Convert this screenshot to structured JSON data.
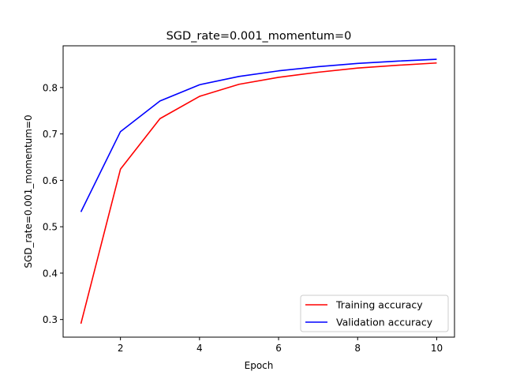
{
  "chart_data": {
    "type": "line",
    "title": "SGD_rate=0.001_momentum=0",
    "xlabel": "Epoch",
    "ylabel": "SGD_rate=0.001_momentum=0",
    "x": [
      1,
      2,
      3,
      4,
      5,
      6,
      7,
      8,
      9,
      10
    ],
    "xlim": [
      0.55,
      10.45
    ],
    "ylim": [
      0.262,
      0.89
    ],
    "xticks": [
      2,
      4,
      6,
      8,
      10
    ],
    "xtick_labels": [
      "2",
      "4",
      "6",
      "8",
      "10"
    ],
    "yticks": [
      0.3,
      0.4,
      0.5,
      0.6,
      0.7,
      0.8
    ],
    "ytick_labels": [
      "0.3",
      "0.4",
      "0.5",
      "0.6",
      "0.7",
      "0.8"
    ],
    "grid": false,
    "legend_position": "lower-right",
    "series": [
      {
        "name": "Training accuracy",
        "color": "#ff0000",
        "values": [
          0.291,
          0.624,
          0.733,
          0.781,
          0.807,
          0.822,
          0.833,
          0.842,
          0.848,
          0.853
        ]
      },
      {
        "name": "Validation accuracy",
        "color": "#0000ff",
        "values": [
          0.532,
          0.705,
          0.771,
          0.806,
          0.824,
          0.836,
          0.845,
          0.852,
          0.857,
          0.861
        ]
      }
    ]
  }
}
